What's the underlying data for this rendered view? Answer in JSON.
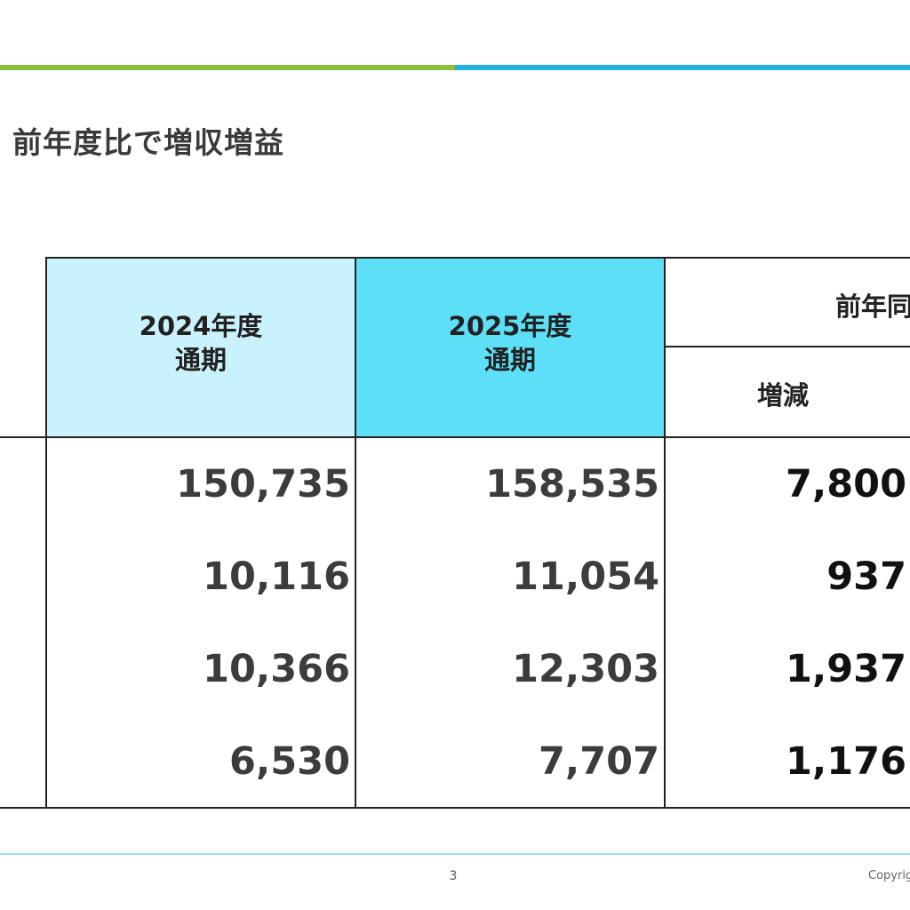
{
  "slide": {
    "title": "前年度比で増収増益",
    "page_number": "3",
    "copyright": "Copyrig"
  },
  "colors": {
    "accent_green": "#8cbf3f",
    "accent_blue": "#1fb3e0",
    "header_2024_bg": "#caf2fc",
    "header_2025_bg": "#5ddff8",
    "footer_line": "#9fdcec"
  },
  "table": {
    "headers": {
      "col_2024": "2024年度\n通期",
      "col_2025": "2025年度\n通期",
      "yoy": "前年同",
      "diff": "増減"
    },
    "rows": [
      {
        "v2024": "150,735",
        "v2025": "158,535",
        "diff": "7,800"
      },
      {
        "v2024": "10,116",
        "v2025": "11,054",
        "diff": "937"
      },
      {
        "v2024": "10,366",
        "v2025": "12,303",
        "diff": "1,937"
      },
      {
        "v2024": "6,530",
        "v2025": "7,707",
        "diff": "1,176"
      }
    ]
  }
}
